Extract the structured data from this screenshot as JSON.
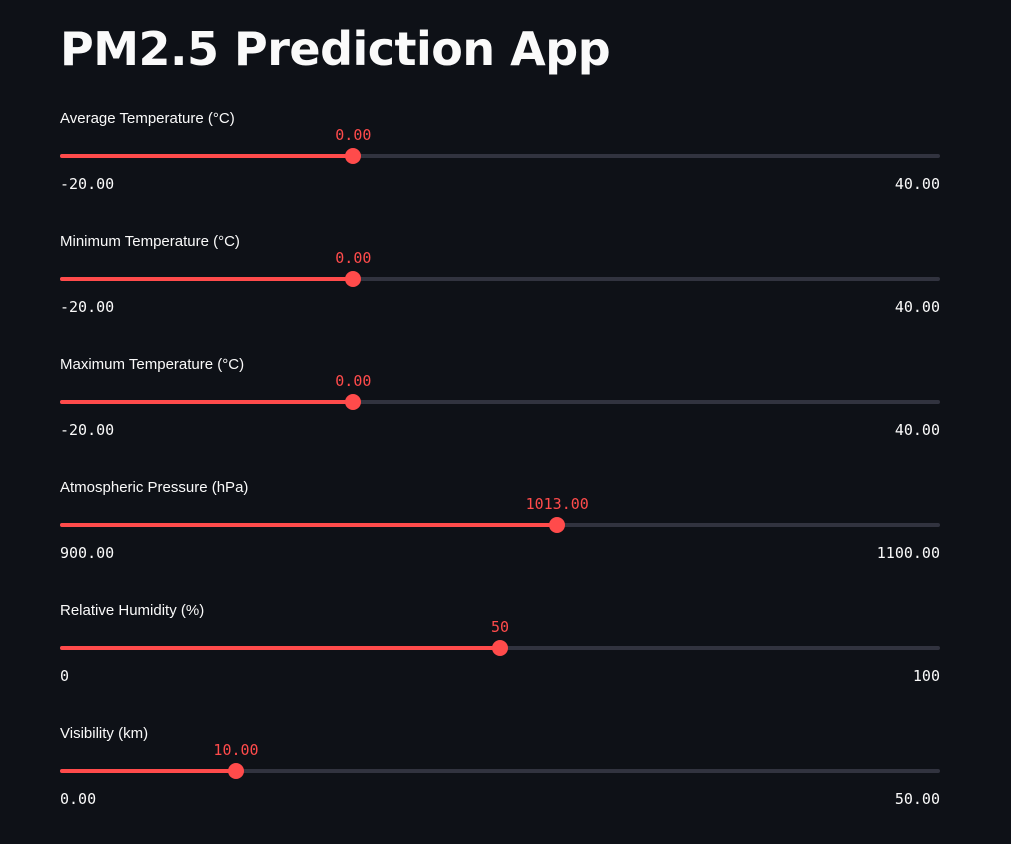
{
  "app": {
    "title": "PM2.5 Prediction App"
  },
  "colors": {
    "background": "#0e1117",
    "accent": "#ff4b4b",
    "track": "#31333f",
    "text": "#fafafa"
  },
  "sliders": [
    {
      "label": "Average Temperature (°C)",
      "value": 0,
      "value_text": "0.00",
      "min": -20,
      "max": 40,
      "min_text": "-20.00",
      "max_text": "40.00"
    },
    {
      "label": "Minimum Temperature (°C)",
      "value": 0,
      "value_text": "0.00",
      "min": -20,
      "max": 40,
      "min_text": "-20.00",
      "max_text": "40.00"
    },
    {
      "label": "Maximum Temperature (°C)",
      "value": 0,
      "value_text": "0.00",
      "min": -20,
      "max": 40,
      "min_text": "-20.00",
      "max_text": "40.00"
    },
    {
      "label": "Atmospheric Pressure (hPa)",
      "value": 1013,
      "value_text": "1013.00",
      "min": 900,
      "max": 1100,
      "min_text": "900.00",
      "max_text": "1100.00"
    },
    {
      "label": "Relative Humidity (%)",
      "value": 50,
      "value_text": "50",
      "min": 0,
      "max": 100,
      "min_text": "0",
      "max_text": "100"
    },
    {
      "label": "Visibility (km)",
      "value": 10,
      "value_text": "10.00",
      "min": 0,
      "max": 50,
      "min_text": "0.00",
      "max_text": "50.00"
    }
  ]
}
